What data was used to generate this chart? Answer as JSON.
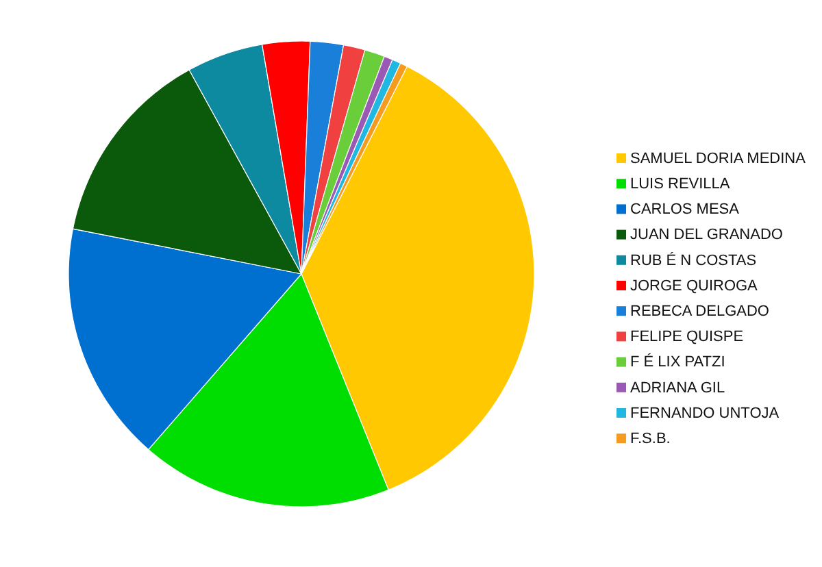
{
  "chart_data": {
    "type": "pie",
    "categories": [
      "SAMUEL DORIA MEDINA",
      "LUIS REVILLA",
      "CARLOS MESA",
      "JUAN DEL GRANADO",
      "RUB É N COSTAS",
      "JORGE QUIROGA",
      "REBECA DELGADO",
      "FELIPE QUISPE",
      "F É LIX PATZI",
      "ADRIANA GIL",
      "FERNANDO UNTOJA",
      "F.S.B."
    ],
    "values": [
      36.4,
      17.5,
      16.7,
      13.9,
      5.3,
      3.3,
      2.3,
      1.5,
      1.4,
      0.6,
      0.6,
      0.5
    ],
    "colors": [
      "#ffc800",
      "#00dd00",
      "#0070d0",
      "#0b5a0b",
      "#0e8aa0",
      "#ff0000",
      "#1a7fd8",
      "#f04040",
      "#6acd3a",
      "#9b59b6",
      "#20b8e0",
      "#f59b20"
    ],
    "legend": "right"
  }
}
